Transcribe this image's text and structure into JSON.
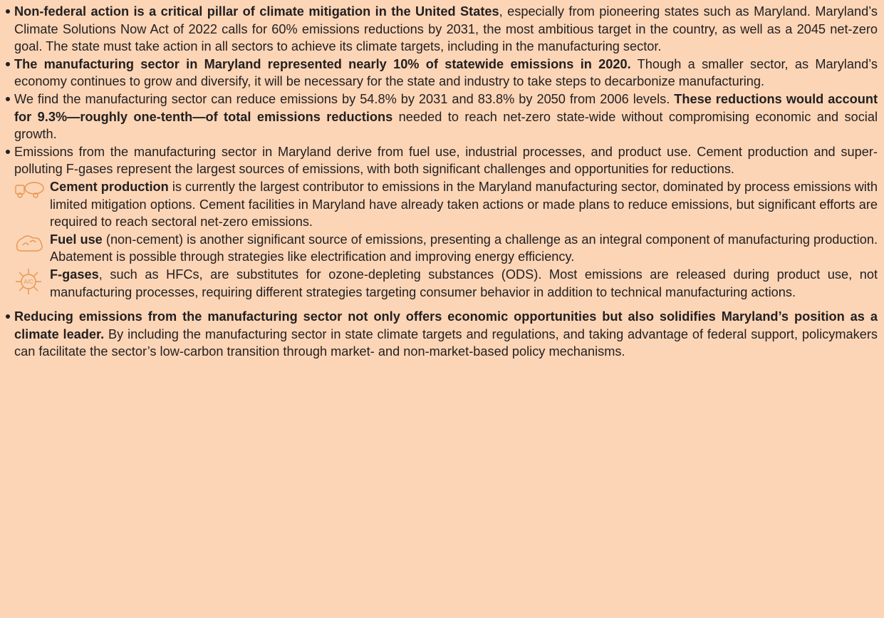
{
  "bullets": [
    {
      "parts": [
        {
          "text": "Non-federal action is a critical pillar of climate mitigation in the United States",
          "bold": true
        },
        {
          "text": ", especially from pioneering states such as Maryland. Maryland’s Climate Solutions Now Act of 2022 calls for 60% emissions reductions by 2031, the most ambitious target in the country, as well as a 2045 net-zero goal. The state must take action in all sectors to achieve its climate targets, including in the manufacturing sector.",
          "bold": false
        }
      ]
    },
    {
      "parts": [
        {
          "text": "The manufacturing sector in Maryland represented nearly 10% of statewide emissions in 2020.",
          "bold": true
        },
        {
          "text": " Though a smaller sector, as Maryland’s economy continues to grow and diversify, it will be necessary for the state and industry to take steps to decarbonize manufacturing.",
          "bold": false
        }
      ]
    },
    {
      "parts": [
        {
          "text": "We find the manufacturing sector can reduce emissions by 54.8% by 2031 and 83.8% by 2050 from 2006 levels. ",
          "bold": false
        },
        {
          "text": "These reductions would account for 9.3%—roughly one-tenth—of total emissions reductions",
          "bold": true
        },
        {
          "text": " needed to reach net-zero state-wide without compromising economic and social growth.",
          "bold": false
        }
      ]
    },
    {
      "parts": [
        {
          "text": "Emissions from the manufacturing sector in Maryland derive from fuel use, industrial processes, and product use. Cement production and super-polluting F-gases represent the largest sources of emissions, with both significant challenges and opportunities for reductions.",
          "bold": false
        }
      ]
    }
  ],
  "subitems": [
    {
      "parts": [
        {
          "text": "Cement production",
          "bold": true
        },
        {
          "text": " is currently the largest contributor to emissions in the Maryland manufacturing sector, dominated by process emissions with limited mitigation options. Cement facilities in Maryland have already taken actions or made plans to reduce emissions, but significant efforts are required to reach sectoral net-zero emissions.",
          "bold": false
        }
      ]
    },
    {
      "parts": [
        {
          "text": "Fuel use",
          "bold": true
        },
        {
          "text": " (non-cement) is another significant source of emissions, presenting a challenge as an integral component of manufacturing production. Abatement is possible through strategies like electrification and improving energy efficiency.",
          "bold": false
        }
      ]
    },
    {
      "parts": [
        {
          "text": "F-gases",
          "bold": true
        },
        {
          "text": ", such as HFCs, are substitutes for ozone-depleting substances (ODS). Most emissions are released during product use, not manufacturing processes, requiring different strategies targeting consumer behavior in addition to technical manufacturing actions.",
          "bold": false
        }
      ]
    }
  ],
  "closing": {
    "parts": [
      {
        "text": "Reducing emissions from the manufacturing sector not only offers economic opportunities but also solidifies Maryland’s position as a climate leader.",
        "bold": true
      },
      {
        "text": " By including the manufacturing sector in state climate targets and regulations, and taking advantage of federal support, policymakers can facilitate the sector’s low-carbon transition through market- and non-market-based policy mechanisms.",
        "bold": false
      }
    ]
  }
}
